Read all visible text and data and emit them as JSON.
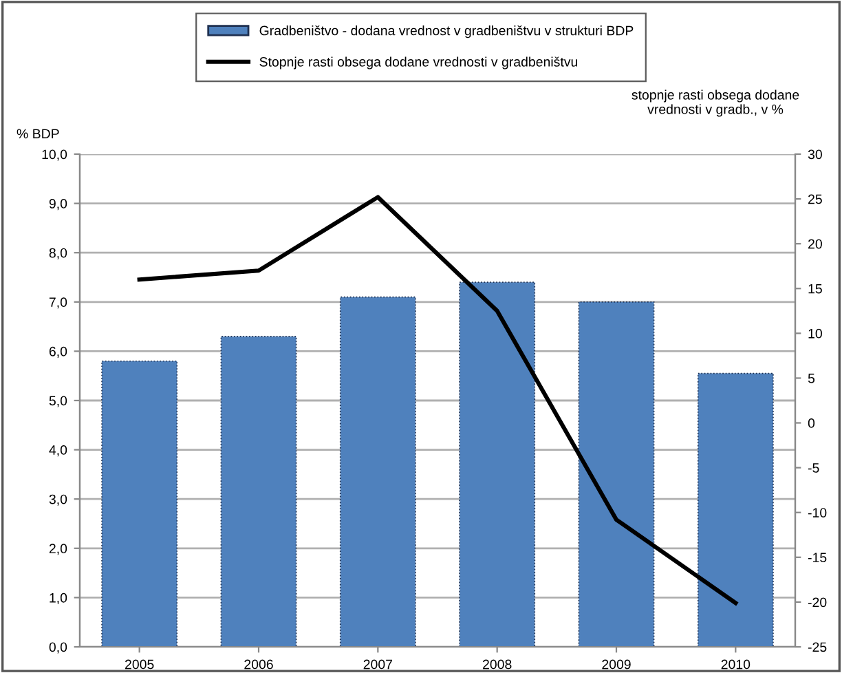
{
  "chart_data": {
    "type": "bar",
    "categories": [
      "2005",
      "2006",
      "2007",
      "2008",
      "2009",
      "2010"
    ],
    "ylabel": "% BDP",
    "y2label": "stopnje rasti obsega dodane vrednosti v gradb., v %",
    "series": [
      {
        "name": "Gradbeništvo - dodana vrednost v gradbeništvu v strukturi BDP",
        "color": "#4f81bd",
        "values": [
          5.8,
          6.3,
          7.1,
          7.4,
          7.0,
          5.55
        ]
      },
      {
        "name": "Stopnje rasti obsega dodane vrednosti v gradbeništvu",
        "type": "line",
        "axis": "y2",
        "color": "#000000",
        "values": [
          16,
          17,
          25.2,
          12.5,
          -10.8,
          -20.1
        ]
      }
    ],
    "ylim": [
      0,
      10
    ],
    "yticks": [
      {
        "value": 0,
        "label": "0,0"
      },
      {
        "value": 1,
        "label": "1,0"
      },
      {
        "value": 2,
        "label": "2,0"
      },
      {
        "value": 3,
        "label": "3,0"
      },
      {
        "value": 4,
        "label": "4,0"
      },
      {
        "value": 5,
        "label": "5,0"
      },
      {
        "value": 6,
        "label": "6,0"
      },
      {
        "value": 7,
        "label": "7,0"
      },
      {
        "value": 8,
        "label": "8,0"
      },
      {
        "value": 9,
        "label": "9,0"
      },
      {
        "value": 10,
        "label": "10,0"
      }
    ],
    "y2lim": [
      -25,
      30
    ],
    "y2ticks": [
      -25,
      -20,
      -15,
      -10,
      -5,
      0,
      5,
      10,
      15,
      20,
      25,
      30
    ],
    "grid": "y",
    "legend": "top",
    "marker": "none",
    "line_style": "solid"
  }
}
